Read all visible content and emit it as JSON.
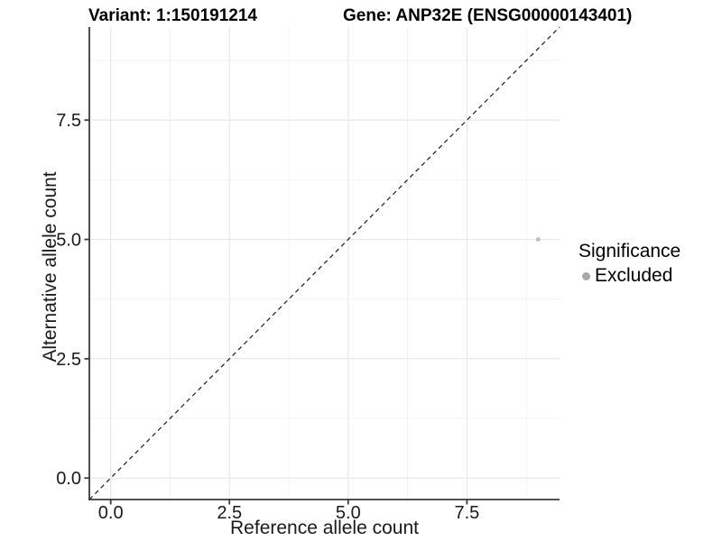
{
  "chart_data": {
    "type": "scatter",
    "title_left": "Variant: 1:150191214",
    "title_right": "Gene: ANP32E (ENSG00000143401)",
    "xlabel": "Reference allele count",
    "ylabel": "Alternative allele count",
    "xlim": [
      -0.45,
      9.45
    ],
    "ylim": [
      -0.45,
      9.45
    ],
    "x_ticks": [
      0.0,
      2.5,
      5.0,
      7.5
    ],
    "y_ticks": [
      0.0,
      2.5,
      5.0,
      7.5
    ],
    "x_tick_labels": [
      "0.0",
      "2.5",
      "5.0",
      "7.5"
    ],
    "y_tick_labels": [
      "0.0",
      "2.5",
      "5.0",
      "7.5"
    ],
    "x_minor_ticks": [
      1.25,
      3.75,
      6.25,
      8.75
    ],
    "y_minor_ticks": [
      1.25,
      3.75,
      6.25,
      8.75
    ],
    "grid": "major-and-minor",
    "reference_line": {
      "type": "identity-diagonal",
      "style": "dashed",
      "color": "#1a1a1a"
    },
    "series": [
      {
        "name": "Excluded",
        "color": "#bdbdbd",
        "point_radius": 2.4,
        "points": [
          {
            "x": 9,
            "y": 5
          }
        ]
      }
    ],
    "legend": {
      "title": "Significance",
      "position": "right",
      "items": [
        {
          "label": "Excluded",
          "color": "#a8a8a8"
        }
      ]
    },
    "colors": {
      "panel_background": "#ffffff",
      "grid_major": "#e6e6e6",
      "grid_minor": "#f0f0f0",
      "axis_line": "#3a3a3a",
      "tick_text": "#1a1a1a"
    }
  }
}
